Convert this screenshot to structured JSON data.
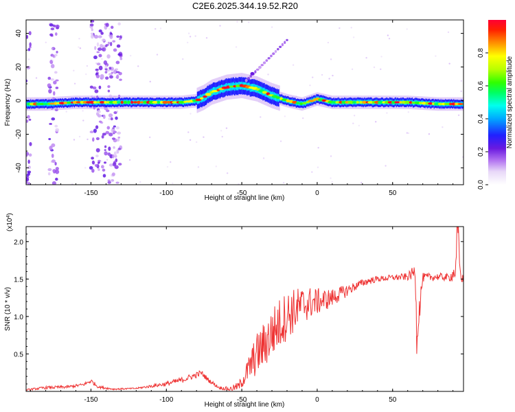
{
  "title": "C2E6.2025.344.19.52.R20",
  "colors": {
    "snr_line": "#ee3333",
    "frame": "#000000",
    "spectral_ridge": "#ff2222",
    "noise": "#9966dd"
  },
  "chart_data": [
    {
      "id": "spectrogram",
      "type": "heatmap",
      "title": "C2E6.2025.344.19.52.R20",
      "xlabel": "Height of straight line (km)",
      "ylabel": "Frequency (Hz)",
      "xlim": [
        -193,
        97
      ],
      "ylim": [
        -50,
        48
      ],
      "xticks": [
        -150,
        -100,
        -50,
        0,
        50
      ],
      "yticks": [
        -40,
        -20,
        0,
        20,
        40
      ],
      "colorbar": {
        "label": "Normalized spectral amplitude",
        "range": [
          0,
          1
        ],
        "ticks": [
          "0.0",
          "0.2",
          "0.4",
          "0.6",
          "0.8"
        ],
        "tick_values": [
          0.0,
          0.2,
          0.4,
          0.6,
          0.8
        ]
      },
      "ridge": {
        "x": [
          -193,
          -180,
          -160,
          -140,
          -120,
          -100,
          -90,
          -80,
          -75,
          -70,
          -60,
          -50,
          -45,
          -40,
          -30,
          -20,
          -10,
          0,
          10,
          20,
          40,
          60,
          80,
          97
        ],
        "y": [
          -2,
          -2,
          -1,
          -1,
          -1,
          -1,
          -1,
          0,
          2,
          5,
          8,
          9,
          8,
          7,
          3,
          0,
          -2,
          1,
          -1,
          -1,
          -1,
          -1,
          -2,
          -2
        ]
      },
      "offshoot": {
        "x": [
          -47,
          -40,
          -30,
          -20
        ],
        "y": [
          12,
          18,
          27,
          36
        ]
      },
      "noise_bands": [
        [
          -150,
          -130
        ],
        [
          -178,
          -172
        ],
        [
          -193,
          -190
        ]
      ]
    },
    {
      "id": "snr",
      "type": "line",
      "title": "",
      "xlabel": "Height of straight line (km)",
      "ylabel": "SNR (10 * v/v)",
      "multiplier": "(x10",
      "multiplier_exp": "4",
      "multiplier_close": ")",
      "xlim": [
        -193,
        97
      ],
      "ylim": [
        0,
        2.2
      ],
      "xticks": [
        -150,
        -100,
        -50,
        0,
        50
      ],
      "yticks": [
        0.5,
        1.0,
        1.5,
        2.0
      ],
      "ytick_labels": [
        "0.5",
        "1.0",
        "1.5",
        "2.0"
      ],
      "series": [
        {
          "name": "SNR",
          "x": [
            -193,
            -180,
            -165,
            -155,
            -150,
            -145,
            -135,
            -120,
            -110,
            -100,
            -90,
            -80,
            -77,
            -72,
            -65,
            -58,
            -52,
            -48,
            -44,
            -40,
            -35,
            -30,
            -25,
            -20,
            -15,
            -10,
            -5,
            0,
            5,
            10,
            15,
            20,
            25,
            30,
            35,
            40,
            50,
            60,
            65,
            66,
            70,
            80,
            88,
            92,
            93,
            95,
            97
          ],
          "y": [
            0.02,
            0.05,
            0.06,
            0.09,
            0.14,
            0.06,
            0.03,
            0.04,
            0.07,
            0.1,
            0.15,
            0.22,
            0.25,
            0.15,
            0.05,
            0.03,
            0.07,
            0.2,
            0.35,
            0.5,
            0.62,
            0.78,
            0.9,
            1.02,
            1.08,
            1.15,
            1.18,
            1.2,
            1.22,
            1.25,
            1.3,
            1.35,
            1.4,
            1.45,
            1.48,
            1.5,
            1.52,
            1.53,
            1.6,
            0.8,
            1.52,
            1.53,
            1.52,
            1.62,
            2.2,
            1.55,
            1.48
          ],
          "noise": [
            0.01,
            0.02,
            0.02,
            0.02,
            0.03,
            0.02,
            0.01,
            0.01,
            0.02,
            0.03,
            0.04,
            0.04,
            0.04,
            0.03,
            0.02,
            0.03,
            0.06,
            0.12,
            0.22,
            0.28,
            0.32,
            0.35,
            0.35,
            0.33,
            0.3,
            0.25,
            0.22,
            0.18,
            0.15,
            0.12,
            0.1,
            0.08,
            0.06,
            0.05,
            0.05,
            0.04,
            0.04,
            0.05,
            0.1,
            0.3,
            0.06,
            0.05,
            0.05,
            0.15,
            0.3,
            0.08,
            0.06
          ]
        }
      ]
    }
  ]
}
